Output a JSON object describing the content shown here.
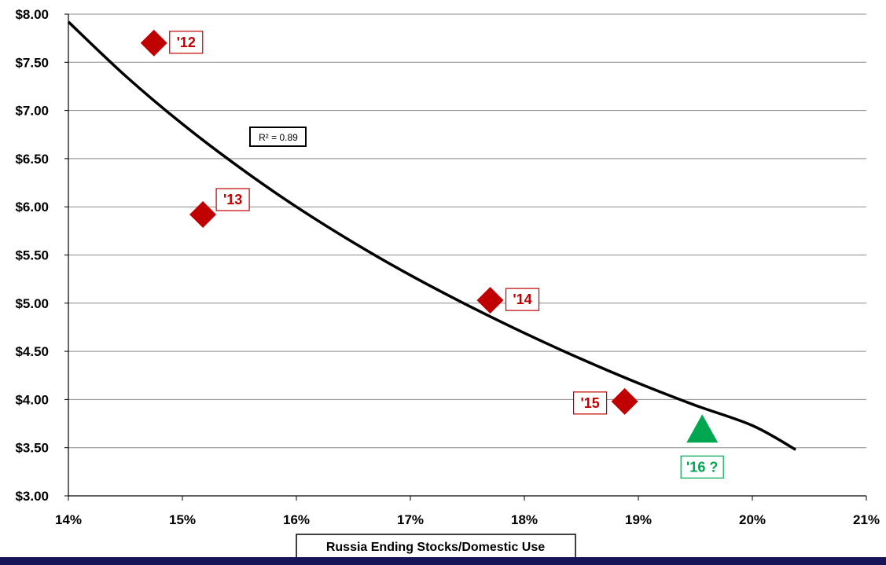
{
  "chart_data": {
    "type": "scatter",
    "title": "",
    "xlabel": "Russia Ending Stocks/Domestic Use",
    "ylabel": "",
    "xlim": [
      14,
      21
    ],
    "ylim": [
      3.0,
      8.0
    ],
    "x_ticks": [
      14,
      15,
      16,
      17,
      18,
      19,
      20,
      21
    ],
    "x_tick_labels": [
      "14%",
      "15%",
      "16%",
      "17%",
      "18%",
      "19%",
      "20%",
      "21%"
    ],
    "y_ticks": [
      3.0,
      3.5,
      4.0,
      4.5,
      5.0,
      5.5,
      6.0,
      6.5,
      7.0,
      7.5,
      8.0
    ],
    "y_tick_labels": [
      "$3.00",
      "$3.50",
      "$4.00",
      "$4.50",
      "$5.00",
      "$5.50",
      "$6.00",
      "$6.50",
      "$7.00",
      "$7.50",
      "$8.00"
    ],
    "grid": "horizontal",
    "points": [
      {
        "label": "'12",
        "x": 14.75,
        "y": 7.7,
        "marker": "diamond",
        "color": "#c00000",
        "label_side": "right"
      },
      {
        "label": "'13",
        "x": 15.18,
        "y": 5.92,
        "marker": "diamond",
        "color": "#c00000",
        "label_side": "upper-right"
      },
      {
        "label": "'14",
        "x": 17.7,
        "y": 5.03,
        "marker": "diamond",
        "color": "#c00000",
        "label_side": "right"
      },
      {
        "label": "'15",
        "x": 18.88,
        "y": 3.98,
        "marker": "diamond",
        "color": "#c00000",
        "label_side": "left"
      }
    ],
    "forecast_point": {
      "label": "'16 ?",
      "x": 19.56,
      "y": 3.65,
      "marker": "triangle",
      "color": "#00a650",
      "label_side": "below"
    },
    "trendline": {
      "type": "power",
      "x": [
        14.0,
        14.5,
        15.0,
        15.5,
        16.0,
        16.5,
        17.0,
        17.5,
        18.0,
        18.5,
        19.0,
        19.5,
        20.0,
        20.38
      ],
      "y": [
        7.92,
        7.36,
        6.86,
        6.41,
        6.0,
        5.63,
        5.29,
        4.98,
        4.69,
        4.42,
        4.17,
        3.94,
        3.73,
        3.48
      ],
      "color": "#000000",
      "r2_label": "R² = 0.89"
    }
  }
}
